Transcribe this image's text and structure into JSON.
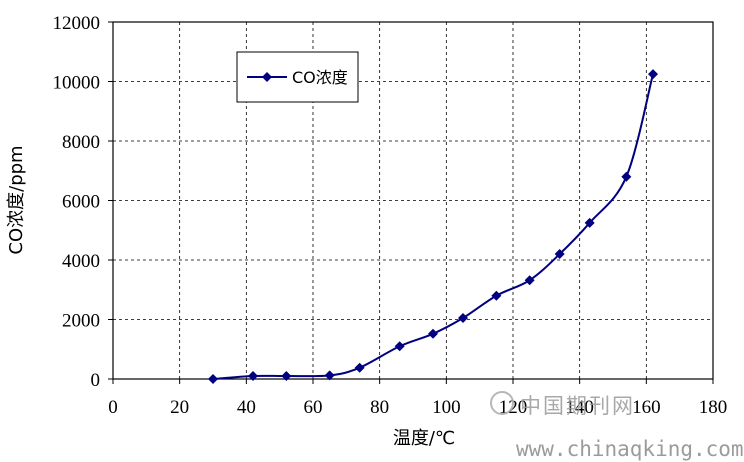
{
  "chart_data": {
    "type": "line",
    "title": "",
    "xlabel": "温度/℃",
    "ylabel": "CO浓度/ppm",
    "xlim": [
      0,
      180
    ],
    "ylim": [
      0,
      12000
    ],
    "x_ticks": [
      0,
      20,
      40,
      60,
      80,
      100,
      120,
      140,
      160,
      180
    ],
    "y_ticks": [
      0,
      2000,
      4000,
      6000,
      8000,
      10000,
      12000
    ],
    "grid": true,
    "legend_position": "top-left",
    "series": [
      {
        "name": "CO浓度",
        "color": "#000080",
        "marker": "diamond",
        "x": [
          30,
          42,
          52,
          65,
          74,
          86,
          96,
          105,
          115,
          125,
          134,
          143,
          154,
          162
        ],
        "y": [
          0,
          100,
          100,
          120,
          380,
          1100,
          1520,
          2050,
          2800,
          3320,
          4200,
          5250,
          6800,
          10250
        ]
      }
    ]
  },
  "watermark": {
    "text": "中国期刊网",
    "url": "www.chinaqking.com"
  }
}
